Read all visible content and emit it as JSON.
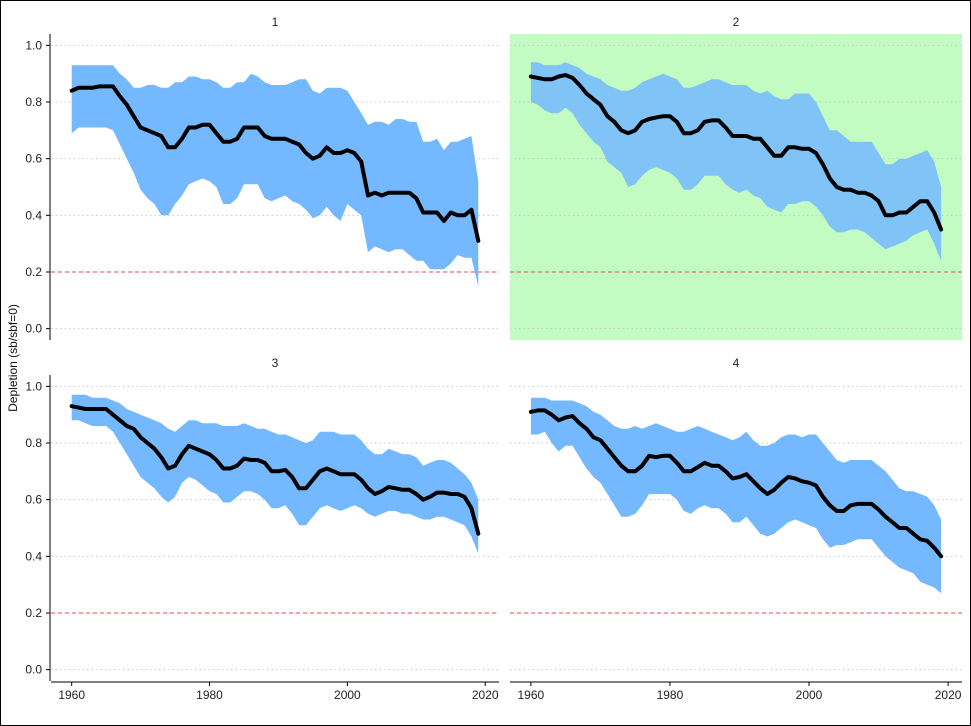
{
  "figure": {
    "ylabel": "Depletion (sb/sbf=0)"
  },
  "chart_data": {
    "type": "line",
    "ylabel": "Depletion (sb/sbf=0)",
    "xlim": [
      1957,
      2022
    ],
    "ylim": [
      -0.04,
      1.04
    ],
    "x_ticks": [
      1960,
      1980,
      2000,
      2020
    ],
    "y_ticks": [
      0.0,
      0.2,
      0.4,
      0.6,
      0.8,
      1.0
    ],
    "y_tick_labels": [
      "0.0",
      "0.2",
      "0.4",
      "0.6",
      "0.8",
      "1.0"
    ],
    "reference_line": {
      "y": 0.2,
      "color": "#d9534f",
      "style": "dashed"
    },
    "grid": "horizontal dotted",
    "band_color": "#74b9ff",
    "line_color": "#000000",
    "highlight_color": "#c3fcc3",
    "panels": [
      {
        "title": "1",
        "highlighted": false,
        "x": [
          1960,
          1961,
          1962,
          1963,
          1964,
          1965,
          1966,
          1967,
          1968,
          1969,
          1970,
          1971,
          1972,
          1973,
          1974,
          1975,
          1976,
          1977,
          1978,
          1979,
          1980,
          1981,
          1982,
          1983,
          1984,
          1985,
          1986,
          1987,
          1988,
          1989,
          1990,
          1991,
          1992,
          1993,
          1994,
          1995,
          1996,
          1997,
          1998,
          1999,
          2000,
          2001,
          2002,
          2003,
          2004,
          2005,
          2006,
          2007,
          2008,
          2009,
          2010,
          2011,
          2012,
          2013,
          2014,
          2015,
          2016,
          2017,
          2018,
          2019
        ],
        "median": [
          0.84,
          0.85,
          0.85,
          0.85,
          0.855,
          0.855,
          0.855,
          0.82,
          0.79,
          0.75,
          0.71,
          0.7,
          0.69,
          0.68,
          0.64,
          0.64,
          0.67,
          0.71,
          0.71,
          0.72,
          0.72,
          0.69,
          0.66,
          0.66,
          0.67,
          0.71,
          0.71,
          0.71,
          0.68,
          0.67,
          0.67,
          0.67,
          0.66,
          0.65,
          0.62,
          0.6,
          0.61,
          0.64,
          0.62,
          0.62,
          0.63,
          0.62,
          0.59,
          0.47,
          0.48,
          0.47,
          0.48,
          0.48,
          0.48,
          0.48,
          0.46,
          0.41,
          0.41,
          0.41,
          0.38,
          0.41,
          0.4,
          0.4,
          0.42,
          0.31
        ],
        "upper": [
          0.93,
          0.93,
          0.93,
          0.93,
          0.93,
          0.93,
          0.93,
          0.9,
          0.88,
          0.85,
          0.85,
          0.86,
          0.86,
          0.85,
          0.85,
          0.87,
          0.87,
          0.89,
          0.89,
          0.88,
          0.88,
          0.87,
          0.85,
          0.85,
          0.87,
          0.87,
          0.9,
          0.89,
          0.87,
          0.86,
          0.86,
          0.86,
          0.87,
          0.88,
          0.88,
          0.84,
          0.83,
          0.85,
          0.85,
          0.85,
          0.84,
          0.8,
          0.76,
          0.72,
          0.73,
          0.73,
          0.72,
          0.74,
          0.74,
          0.73,
          0.73,
          0.66,
          0.66,
          0.67,
          0.63,
          0.66,
          0.66,
          0.67,
          0.68,
          0.52
        ],
        "lower": [
          0.69,
          0.71,
          0.71,
          0.71,
          0.71,
          0.71,
          0.7,
          0.65,
          0.6,
          0.55,
          0.49,
          0.46,
          0.44,
          0.4,
          0.4,
          0.44,
          0.47,
          0.51,
          0.52,
          0.53,
          0.52,
          0.5,
          0.44,
          0.44,
          0.46,
          0.51,
          0.51,
          0.51,
          0.46,
          0.45,
          0.46,
          0.47,
          0.45,
          0.44,
          0.42,
          0.39,
          0.4,
          0.43,
          0.4,
          0.38,
          0.44,
          0.42,
          0.4,
          0.27,
          0.29,
          0.28,
          0.27,
          0.28,
          0.28,
          0.26,
          0.24,
          0.24,
          0.21,
          0.21,
          0.21,
          0.23,
          0.26,
          0.25,
          0.25,
          0.15
        ]
      },
      {
        "title": "2",
        "highlighted": true,
        "x": [
          1960,
          1961,
          1962,
          1963,
          1964,
          1965,
          1966,
          1967,
          1968,
          1969,
          1970,
          1971,
          1972,
          1973,
          1974,
          1975,
          1976,
          1977,
          1978,
          1979,
          1980,
          1981,
          1982,
          1983,
          1984,
          1985,
          1986,
          1987,
          1988,
          1989,
          1990,
          1991,
          1992,
          1993,
          1994,
          1995,
          1996,
          1997,
          1998,
          1999,
          2000,
          2001,
          2002,
          2003,
          2004,
          2005,
          2006,
          2007,
          2008,
          2009,
          2010,
          2011,
          2012,
          2013,
          2014,
          2015,
          2016,
          2017,
          2018,
          2019
        ],
        "median": [
          0.89,
          0.885,
          0.88,
          0.88,
          0.89,
          0.895,
          0.885,
          0.86,
          0.83,
          0.81,
          0.79,
          0.75,
          0.73,
          0.7,
          0.69,
          0.7,
          0.73,
          0.74,
          0.745,
          0.75,
          0.75,
          0.73,
          0.69,
          0.69,
          0.7,
          0.73,
          0.735,
          0.735,
          0.71,
          0.68,
          0.68,
          0.68,
          0.67,
          0.67,
          0.64,
          0.61,
          0.61,
          0.64,
          0.64,
          0.635,
          0.635,
          0.62,
          0.58,
          0.53,
          0.5,
          0.49,
          0.49,
          0.48,
          0.48,
          0.47,
          0.45,
          0.4,
          0.4,
          0.41,
          0.41,
          0.43,
          0.45,
          0.45,
          0.41,
          0.35
        ],
        "upper": [
          0.94,
          0.94,
          0.93,
          0.93,
          0.93,
          0.94,
          0.93,
          0.92,
          0.9,
          0.89,
          0.88,
          0.86,
          0.85,
          0.84,
          0.84,
          0.85,
          0.87,
          0.88,
          0.89,
          0.9,
          0.89,
          0.88,
          0.85,
          0.85,
          0.86,
          0.87,
          0.88,
          0.88,
          0.87,
          0.86,
          0.86,
          0.86,
          0.84,
          0.83,
          0.84,
          0.82,
          0.81,
          0.81,
          0.83,
          0.83,
          0.83,
          0.8,
          0.75,
          0.7,
          0.7,
          0.68,
          0.66,
          0.66,
          0.66,
          0.66,
          0.62,
          0.58,
          0.58,
          0.6,
          0.6,
          0.61,
          0.62,
          0.63,
          0.59,
          0.5
        ],
        "lower": [
          0.8,
          0.79,
          0.77,
          0.76,
          0.76,
          0.78,
          0.76,
          0.72,
          0.69,
          0.66,
          0.64,
          0.59,
          0.57,
          0.55,
          0.5,
          0.51,
          0.54,
          0.56,
          0.57,
          0.56,
          0.55,
          0.53,
          0.49,
          0.49,
          0.51,
          0.54,
          0.54,
          0.54,
          0.51,
          0.49,
          0.48,
          0.49,
          0.47,
          0.46,
          0.43,
          0.42,
          0.41,
          0.44,
          0.44,
          0.45,
          0.45,
          0.43,
          0.4,
          0.36,
          0.34,
          0.34,
          0.35,
          0.35,
          0.34,
          0.32,
          0.3,
          0.28,
          0.29,
          0.3,
          0.31,
          0.33,
          0.34,
          0.35,
          0.3,
          0.24
        ]
      },
      {
        "title": "3",
        "highlighted": false,
        "x": [
          1960,
          1961,
          1962,
          1963,
          1964,
          1965,
          1966,
          1967,
          1968,
          1969,
          1970,
          1971,
          1972,
          1973,
          1974,
          1975,
          1976,
          1977,
          1978,
          1979,
          1980,
          1981,
          1982,
          1983,
          1984,
          1985,
          1986,
          1987,
          1988,
          1989,
          1990,
          1991,
          1992,
          1993,
          1994,
          1995,
          1996,
          1997,
          1998,
          1999,
          2000,
          2001,
          2002,
          2003,
          2004,
          2005,
          2006,
          2007,
          2008,
          2009,
          2010,
          2011,
          2012,
          2013,
          2014,
          2015,
          2016,
          2017,
          2018,
          2019
        ],
        "median": [
          0.93,
          0.925,
          0.92,
          0.92,
          0.92,
          0.92,
          0.9,
          0.88,
          0.86,
          0.85,
          0.82,
          0.8,
          0.78,
          0.75,
          0.71,
          0.72,
          0.76,
          0.79,
          0.78,
          0.77,
          0.76,
          0.74,
          0.71,
          0.71,
          0.72,
          0.745,
          0.74,
          0.74,
          0.73,
          0.7,
          0.7,
          0.705,
          0.68,
          0.64,
          0.64,
          0.67,
          0.7,
          0.71,
          0.7,
          0.69,
          0.69,
          0.69,
          0.67,
          0.64,
          0.62,
          0.63,
          0.645,
          0.64,
          0.635,
          0.635,
          0.62,
          0.6,
          0.61,
          0.625,
          0.625,
          0.62,
          0.62,
          0.61,
          0.57,
          0.48
        ],
        "upper": [
          0.97,
          0.97,
          0.97,
          0.96,
          0.96,
          0.96,
          0.95,
          0.94,
          0.92,
          0.91,
          0.9,
          0.89,
          0.88,
          0.87,
          0.85,
          0.84,
          0.86,
          0.88,
          0.88,
          0.87,
          0.87,
          0.87,
          0.86,
          0.86,
          0.86,
          0.87,
          0.86,
          0.85,
          0.85,
          0.84,
          0.83,
          0.83,
          0.82,
          0.81,
          0.8,
          0.81,
          0.84,
          0.84,
          0.84,
          0.83,
          0.83,
          0.83,
          0.81,
          0.78,
          0.76,
          0.76,
          0.78,
          0.77,
          0.76,
          0.76,
          0.75,
          0.72,
          0.73,
          0.74,
          0.74,
          0.73,
          0.71,
          0.69,
          0.66,
          0.6
        ],
        "lower": [
          0.88,
          0.88,
          0.87,
          0.86,
          0.86,
          0.86,
          0.84,
          0.8,
          0.76,
          0.72,
          0.68,
          0.66,
          0.64,
          0.61,
          0.59,
          0.61,
          0.66,
          0.68,
          0.67,
          0.65,
          0.63,
          0.62,
          0.59,
          0.59,
          0.61,
          0.63,
          0.63,
          0.62,
          0.6,
          0.57,
          0.57,
          0.58,
          0.55,
          0.51,
          0.51,
          0.54,
          0.57,
          0.58,
          0.57,
          0.56,
          0.57,
          0.58,
          0.57,
          0.55,
          0.54,
          0.55,
          0.56,
          0.56,
          0.55,
          0.55,
          0.54,
          0.53,
          0.53,
          0.54,
          0.54,
          0.53,
          0.52,
          0.51,
          0.47,
          0.41
        ]
      },
      {
        "title": "4",
        "highlighted": false,
        "x": [
          1960,
          1961,
          1962,
          1963,
          1964,
          1965,
          1966,
          1967,
          1968,
          1969,
          1970,
          1971,
          1972,
          1973,
          1974,
          1975,
          1976,
          1977,
          1978,
          1979,
          1980,
          1981,
          1982,
          1983,
          1984,
          1985,
          1986,
          1987,
          1988,
          1989,
          1990,
          1991,
          1992,
          1993,
          1994,
          1995,
          1996,
          1997,
          1998,
          1999,
          2000,
          2001,
          2002,
          2003,
          2004,
          2005,
          2006,
          2007,
          2008,
          2009,
          2010,
          2011,
          2012,
          2013,
          2014,
          2015,
          2016,
          2017,
          2018,
          2019
        ],
        "median": [
          0.91,
          0.915,
          0.915,
          0.9,
          0.88,
          0.89,
          0.895,
          0.87,
          0.85,
          0.82,
          0.81,
          0.78,
          0.75,
          0.72,
          0.7,
          0.7,
          0.72,
          0.755,
          0.75,
          0.755,
          0.755,
          0.73,
          0.7,
          0.7,
          0.715,
          0.73,
          0.72,
          0.72,
          0.7,
          0.675,
          0.68,
          0.69,
          0.665,
          0.64,
          0.62,
          0.635,
          0.66,
          0.68,
          0.675,
          0.665,
          0.66,
          0.65,
          0.61,
          0.58,
          0.56,
          0.56,
          0.58,
          0.585,
          0.585,
          0.585,
          0.565,
          0.54,
          0.52,
          0.5,
          0.5,
          0.48,
          0.46,
          0.455,
          0.43,
          0.4
        ],
        "upper": [
          0.96,
          0.96,
          0.96,
          0.95,
          0.95,
          0.95,
          0.95,
          0.94,
          0.93,
          0.91,
          0.9,
          0.88,
          0.86,
          0.85,
          0.85,
          0.86,
          0.85,
          0.86,
          0.87,
          0.86,
          0.85,
          0.84,
          0.84,
          0.85,
          0.86,
          0.85,
          0.84,
          0.83,
          0.82,
          0.81,
          0.82,
          0.84,
          0.81,
          0.79,
          0.79,
          0.8,
          0.82,
          0.83,
          0.83,
          0.82,
          0.83,
          0.83,
          0.8,
          0.77,
          0.74,
          0.73,
          0.74,
          0.74,
          0.74,
          0.74,
          0.72,
          0.7,
          0.67,
          0.64,
          0.63,
          0.63,
          0.62,
          0.61,
          0.58,
          0.53
        ],
        "lower": [
          0.83,
          0.83,
          0.84,
          0.8,
          0.77,
          0.79,
          0.79,
          0.75,
          0.71,
          0.68,
          0.66,
          0.62,
          0.58,
          0.54,
          0.54,
          0.55,
          0.58,
          0.62,
          0.62,
          0.62,
          0.62,
          0.6,
          0.56,
          0.55,
          0.57,
          0.58,
          0.57,
          0.57,
          0.55,
          0.52,
          0.52,
          0.54,
          0.51,
          0.48,
          0.47,
          0.48,
          0.5,
          0.52,
          0.53,
          0.52,
          0.51,
          0.5,
          0.46,
          0.43,
          0.44,
          0.44,
          0.45,
          0.46,
          0.46,
          0.46,
          0.43,
          0.4,
          0.38,
          0.36,
          0.35,
          0.34,
          0.31,
          0.3,
          0.29,
          0.27
        ]
      }
    ]
  }
}
